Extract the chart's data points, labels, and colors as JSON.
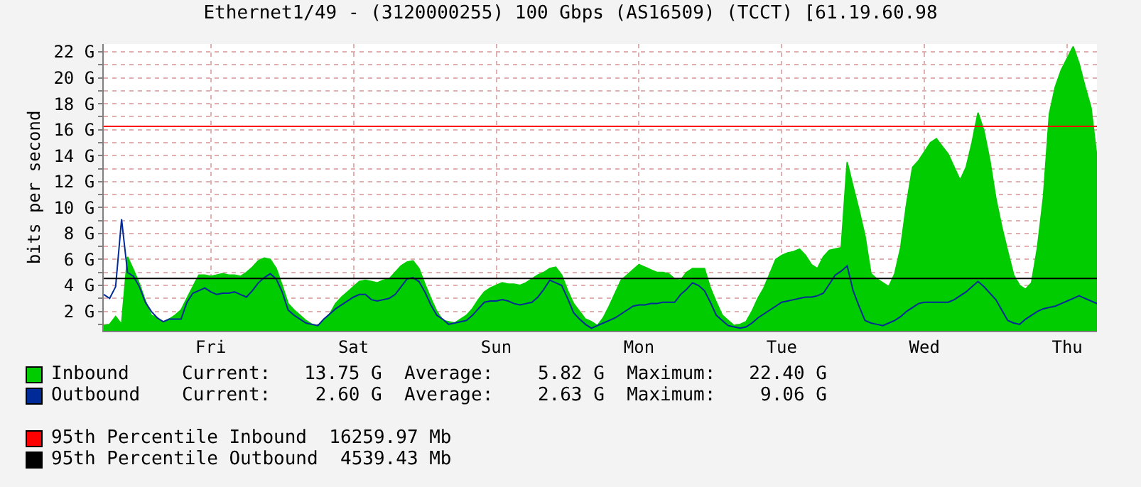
{
  "chart_data": {
    "type": "area",
    "title": "Ethernet1/49 - (3120000255) 100 Gbps (AS16509) (TCCT) [61.19.60.98",
    "ylabel": "bits per second",
    "categories": [
      null,
      null,
      null,
      null,
      null,
      null,
      null,
      null,
      null,
      null,
      null,
      null,
      null,
      null,
      null,
      null,
      null,
      null,
      "Fri",
      null,
      null,
      null,
      null,
      null,
      null,
      null,
      null,
      null,
      null,
      null,
      null,
      null,
      null,
      null,
      null,
      null,
      null,
      null,
      null,
      null,
      null,
      null,
      "Sat",
      null,
      null,
      null,
      null,
      null,
      null,
      null,
      null,
      null,
      null,
      null,
      null,
      null,
      null,
      null,
      null,
      null,
      null,
      null,
      null,
      null,
      null,
      null,
      "Sun",
      null,
      null,
      null,
      null,
      null,
      null,
      null,
      null,
      null,
      null,
      null,
      null,
      null,
      null,
      null,
      null,
      null,
      null,
      null,
      null,
      null,
      null,
      null,
      "Mon",
      null,
      null,
      null,
      null,
      null,
      null,
      null,
      null,
      null,
      null,
      null,
      null,
      null,
      null,
      null,
      null,
      null,
      null,
      null,
      null,
      null,
      null,
      null,
      "Tue",
      null,
      null,
      null,
      null,
      null,
      null,
      null,
      null,
      null,
      null,
      null,
      null,
      null,
      null,
      null,
      null,
      null,
      null,
      null,
      null,
      null,
      null,
      null,
      "Wed",
      null,
      null,
      null,
      null,
      null,
      null,
      null,
      null,
      null,
      null,
      null,
      null,
      null,
      null,
      null,
      null,
      null,
      null,
      null,
      null,
      null,
      null,
      null,
      "Thu",
      null,
      null,
      null,
      null,
      null
    ],
    "series": [
      {
        "name": "Inbound",
        "color": "#00cc00",
        "values": [
          0.9,
          1.0,
          1.6,
          1.0,
          6.2,
          5.2,
          4.1,
          2.8,
          1.7,
          1.5,
          1.1,
          1.4,
          1.7,
          2.1,
          3.0,
          3.9,
          4.8,
          4.8,
          4.7,
          4.8,
          4.9,
          4.8,
          4.8,
          4.7,
          5.0,
          5.4,
          5.9,
          6.1,
          6.0,
          5.3,
          4.0,
          2.6,
          2.1,
          1.7,
          1.3,
          1.0,
          0.9,
          1.3,
          1.8,
          2.6,
          3.1,
          3.5,
          3.9,
          4.3,
          4.4,
          4.3,
          4.2,
          4.4,
          4.5,
          5.0,
          5.5,
          5.8,
          5.9,
          5.3,
          4.1,
          3.0,
          2.0,
          1.3,
          1.2,
          1.1,
          1.4,
          1.7,
          2.2,
          2.9,
          3.5,
          3.8,
          4.0,
          4.2,
          4.1,
          4.1,
          4.0,
          4.2,
          4.5,
          4.8,
          5.0,
          5.3,
          5.4,
          4.8,
          3.6,
          2.6,
          2.0,
          1.4,
          1.2,
          0.9,
          1.5,
          2.4,
          3.4,
          4.4,
          4.8,
          5.2,
          5.6,
          5.4,
          5.2,
          5.0,
          5.0,
          4.9,
          4.5,
          4.4,
          5.0,
          5.3,
          5.3,
          5.3,
          3.8,
          2.7,
          1.7,
          1.3,
          0.9,
          1.0,
          1.2,
          2.0,
          3.0,
          3.8,
          4.9,
          6.0,
          6.3,
          6.5,
          6.6,
          6.8,
          6.3,
          5.6,
          5.3,
          6.2,
          6.7,
          6.8,
          6.9,
          13.5,
          11.6,
          9.8,
          7.8,
          4.9,
          4.5,
          4.2,
          3.9,
          4.9,
          6.9,
          10.3,
          13.1,
          13.6,
          14.3,
          15.0,
          15.3,
          14.7,
          14.1,
          13.1,
          12.1,
          13.1,
          15.0,
          17.3,
          15.9,
          13.6,
          10.7,
          8.5,
          6.6,
          4.8,
          4.0,
          3.7,
          4.2,
          6.9,
          10.8,
          17.2,
          19.3,
          20.6,
          21.5,
          22.4,
          21.1,
          19.3,
          17.7,
          13.8
        ]
      },
      {
        "name": "Outbound",
        "type": "line",
        "color": "#002a97",
        "values": [
          3.3,
          3.0,
          3.9,
          9.1,
          5.0,
          4.7,
          3.9,
          2.7,
          2.0,
          1.5,
          1.2,
          1.4,
          1.4,
          1.4,
          2.7,
          3.4,
          3.6,
          3.8,
          3.5,
          3.3,
          3.4,
          3.4,
          3.5,
          3.3,
          3.1,
          3.6,
          4.2,
          4.6,
          4.9,
          4.5,
          3.5,
          2.1,
          1.7,
          1.4,
          1.1,
          1.0,
          0.9,
          1.4,
          1.8,
          2.2,
          2.5,
          2.8,
          3.1,
          3.3,
          3.3,
          2.9,
          2.8,
          2.9,
          3.0,
          3.3,
          3.9,
          4.5,
          4.6,
          4.3,
          3.5,
          2.5,
          1.7,
          1.4,
          1.0,
          1.1,
          1.2,
          1.3,
          1.7,
          2.2,
          2.7,
          2.8,
          2.8,
          2.9,
          2.8,
          2.6,
          2.5,
          2.6,
          2.7,
          3.1,
          3.7,
          4.4,
          4.2,
          4.0,
          3.0,
          1.9,
          1.4,
          1.0,
          0.7,
          0.9,
          1.1,
          1.3,
          1.5,
          1.8,
          2.1,
          2.4,
          2.5,
          2.5,
          2.6,
          2.6,
          2.7,
          2.7,
          2.7,
          3.3,
          3.7,
          4.2,
          4.0,
          3.6,
          2.7,
          1.7,
          1.3,
          0.9,
          0.8,
          0.7,
          0.8,
          1.1,
          1.5,
          1.8,
          2.1,
          2.4,
          2.7,
          2.8,
          2.9,
          3.0,
          3.1,
          3.1,
          3.2,
          3.4,
          4.1,
          4.8,
          5.1,
          5.5,
          3.6,
          2.4,
          1.3,
          1.1,
          1.0,
          0.9,
          1.1,
          1.3,
          1.6,
          2.0,
          2.3,
          2.6,
          2.7,
          2.7,
          2.7,
          2.7,
          2.7,
          2.9,
          3.2,
          3.5,
          3.9,
          4.3,
          3.9,
          3.4,
          2.9,
          2.1,
          1.3,
          1.1,
          1.0,
          1.4,
          1.7,
          2.0,
          2.2,
          2.3,
          2.4,
          2.6,
          2.8,
          3.0,
          3.2,
          3.0,
          2.8,
          2.6
        ]
      }
    ],
    "ylim": [
      0.5,
      22.6
    ],
    "yticks": [
      {
        "value": 1,
        "label": null
      },
      {
        "value": 2,
        "label": "2 G"
      },
      {
        "value": 3,
        "label": null
      },
      {
        "value": 4,
        "label": "4 G"
      },
      {
        "value": 5,
        "label": null
      },
      {
        "value": 6,
        "label": "6 G"
      },
      {
        "value": 7,
        "label": null
      },
      {
        "value": 8,
        "label": "8 G"
      },
      {
        "value": 9,
        "label": null
      },
      {
        "value": 10,
        "label": "10 G"
      },
      {
        "value": 11,
        "label": null
      },
      {
        "value": 12,
        "label": "12 G"
      },
      {
        "value": 13,
        "label": null
      },
      {
        "value": 14,
        "label": "14 G"
      },
      {
        "value": 15,
        "label": null
      },
      {
        "value": 16,
        "label": "16 G"
      },
      {
        "value": 17,
        "label": null
      },
      {
        "value": 18,
        "label": "18 G"
      },
      {
        "value": 19,
        "label": null
      },
      {
        "value": 20,
        "label": "20 G"
      },
      {
        "value": 21,
        "label": null
      },
      {
        "value": 22,
        "label": "22 G"
      }
    ],
    "grid": true,
    "legend": "bottom",
    "ref_lines": [
      {
        "axis": "y",
        "value": 16.26,
        "label": "95th Percentile Inbound  16259.97 Mb",
        "color": "#ff0000"
      },
      {
        "axis": "y",
        "value": 4.54,
        "label": "95th Percentile Outbound  4539.43 Mb",
        "color": "#000000"
      }
    ],
    "annotations": [
      "Current:   13.75 G  Average:    5.82 G  Maximum:   22.40 G",
      "Current:    2.60 G  Average:    2.63 G  Maximum:    9.06 G"
    ]
  }
}
